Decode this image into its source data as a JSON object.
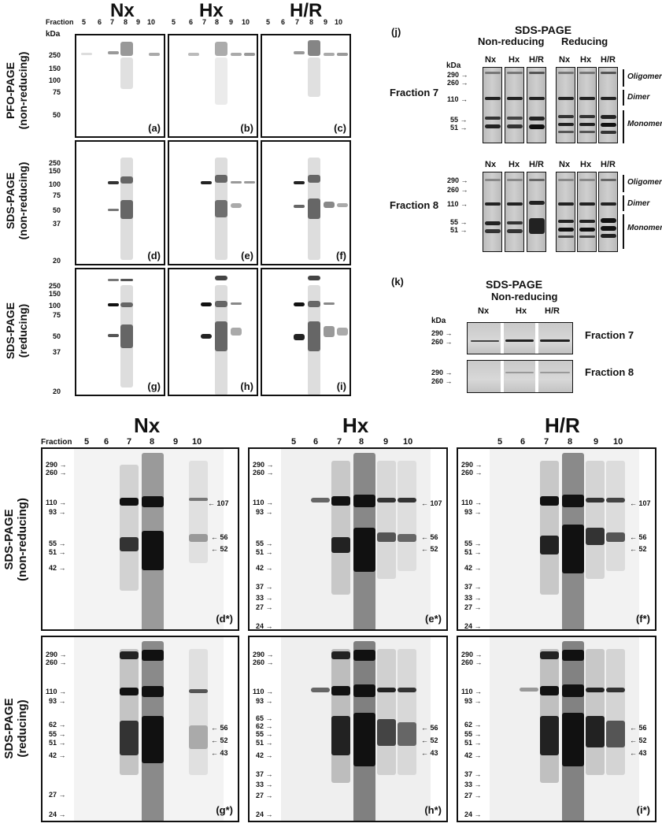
{
  "top": {
    "fraction_label": "Fraction",
    "fractions": [
      "5",
      "6",
      "7",
      "8",
      "9",
      "10"
    ],
    "kda": "kDa",
    "groups": [
      "Nx",
      "Hx",
      "H/R"
    ],
    "row_labels": [
      {
        "line1": "PFO-PAGE",
        "line2": "(non-reducing)"
      },
      {
        "line1": "SDS-PAGE",
        "line2": "(non-reducing)"
      },
      {
        "line1": "SDS-PAGE",
        "line2": "(reducing)"
      }
    ],
    "markers": [
      [
        "250",
        "150",
        "100",
        "75",
        "50"
      ],
      [
        "250",
        "150",
        "100",
        "75",
        "50",
        "37",
        "20"
      ],
      [
        "250",
        "150",
        "100",
        "75",
        "50",
        "37",
        "20"
      ]
    ],
    "panel_labels": [
      [
        "(a)",
        "(b)",
        "(c)"
      ],
      [
        "(d)",
        "(e)",
        "(f)"
      ],
      [
        "(g)",
        "(h)",
        "(i)"
      ]
    ]
  },
  "j": {
    "label": "(j)",
    "title": "SDS-PAGE",
    "nonreducing": "Non-reducing",
    "reducing": "Reducing",
    "lanes": [
      "Nx",
      "Hx",
      "H/R",
      "Nx",
      "Hx",
      "H/R"
    ],
    "kda": "kDa",
    "fraction7": "Fraction 7",
    "fraction8": "Fraction 8",
    "markers": [
      "290",
      "260",
      "110",
      "55",
      "51"
    ],
    "annot": [
      "Oligomer",
      "Dimer",
      "Monomer"
    ]
  },
  "k": {
    "label": "(k)",
    "title": "SDS-PAGE",
    "subtitle": "Non-reducing",
    "lanes": [
      "Nx",
      "Hx",
      "H/R"
    ],
    "kda": "kDa",
    "markers": [
      "290",
      "260"
    ],
    "fraction7": "Fraction 7",
    "fraction8": "Fraction 8"
  },
  "bottom": {
    "fraction_label": "Fraction",
    "fractions": [
      "5",
      "6",
      "7",
      "8",
      "9",
      "10"
    ],
    "groups": [
      "Nx",
      "Hx",
      "H/R"
    ],
    "row_labels": [
      {
        "line1": "SDS-PAGE",
        "line2": "(non-reducing)"
      },
      {
        "line1": "SDS-PAGE",
        "line2": "(reducing)"
      }
    ],
    "markers_nonred_nx": [
      "290",
      "260",
      "110",
      "93",
      "55",
      "51",
      "42"
    ],
    "markers_nonred": [
      "290",
      "260",
      "110",
      "93",
      "55",
      "51",
      "42",
      "37",
      "33",
      "27",
      "24"
    ],
    "markers_red_nx": [
      "290",
      "260",
      "110",
      "93",
      "62",
      "55",
      "51",
      "42",
      "27",
      "24"
    ],
    "markers_red_hx": [
      "290",
      "260",
      "110",
      "93",
      "65",
      "62",
      "55",
      "51",
      "42",
      "37",
      "33",
      "27",
      "24"
    ],
    "markers_red_hr": [
      "290",
      "260",
      "110",
      "93",
      "62",
      "55",
      "51",
      "42",
      "37",
      "33",
      "27",
      "24"
    ],
    "right_nonred": [
      "107",
      "56",
      "52"
    ],
    "right_red": [
      "56",
      "52",
      "43"
    ],
    "panel_labels": [
      [
        "(d*)",
        "(e*)",
        "(f*)"
      ],
      [
        "(g*)",
        "(h*)",
        "(i*)"
      ]
    ]
  }
}
